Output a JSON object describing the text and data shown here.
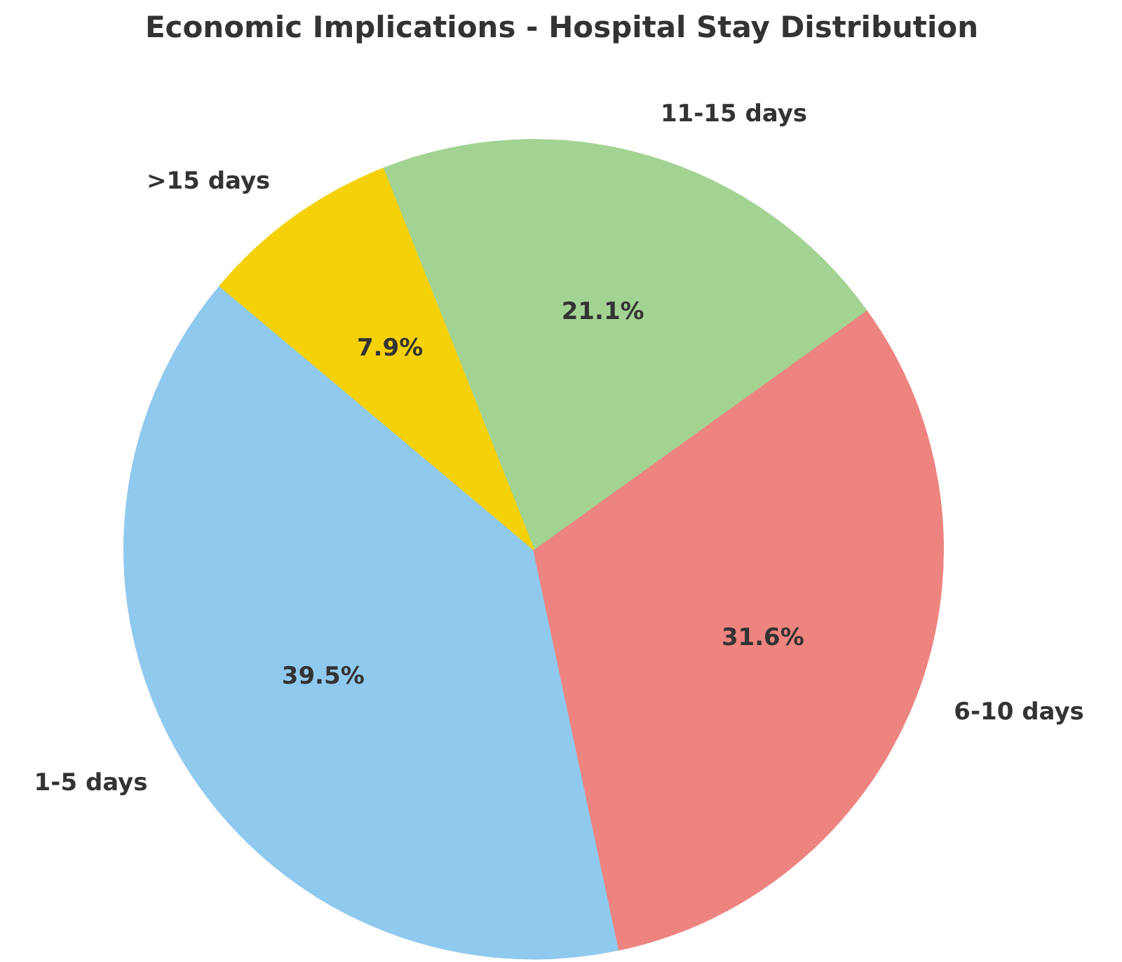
{
  "chart_data": {
    "type": "pie",
    "title": "Economic Implications - Hospital Stay Distribution",
    "categories": [
      "1-5 days",
      "6-10 days",
      "11-15 days",
      ">15 days"
    ],
    "values": [
      39.5,
      31.6,
      21.1,
      7.9
    ],
    "colors": [
      "#90c9ee",
      "#ee847f",
      "#a3d393",
      "#f5d10a"
    ],
    "value_labels": [
      "39.5%",
      "31.6%",
      "21.1%",
      "7.9%"
    ]
  }
}
